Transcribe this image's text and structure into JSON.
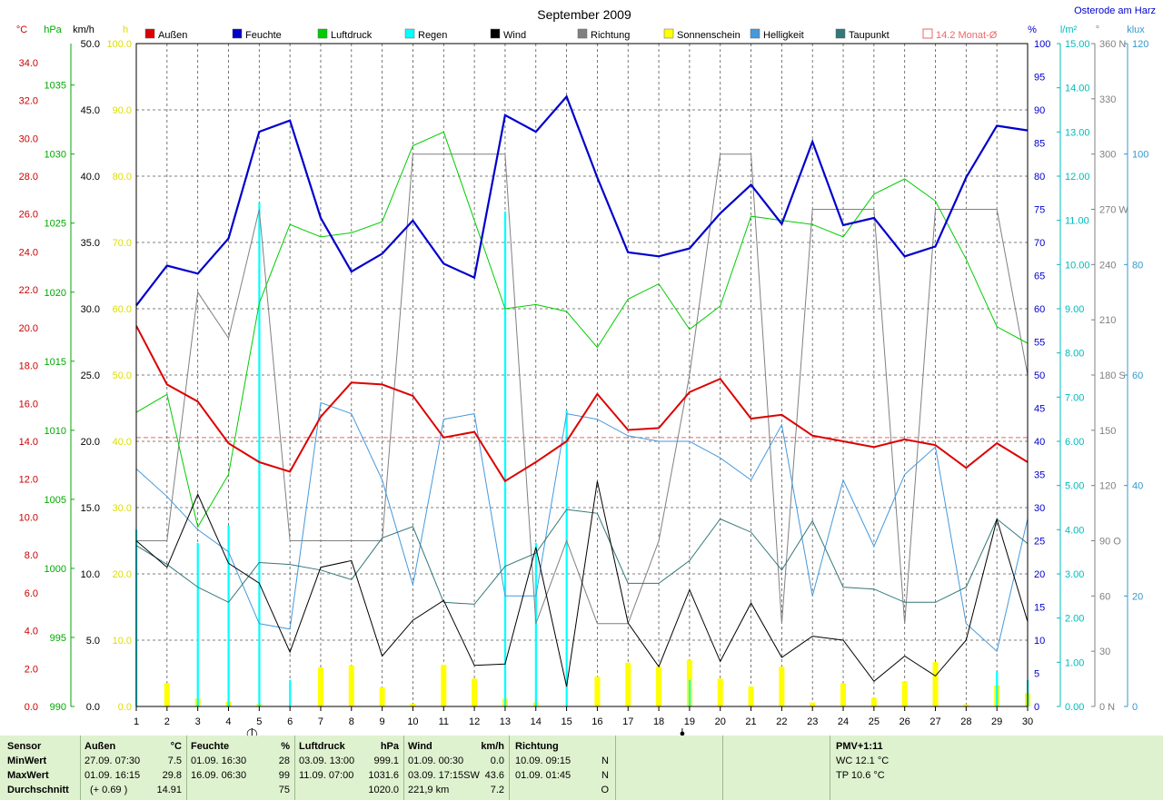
{
  "chart_data": {
    "type": "line",
    "title": "September 2009",
    "location": "Osterode am Harz",
    "days": [
      1,
      2,
      3,
      4,
      5,
      6,
      7,
      8,
      9,
      10,
      11,
      12,
      13,
      14,
      15,
      16,
      17,
      18,
      19,
      20,
      21,
      22,
      23,
      24,
      25,
      26,
      27,
      28,
      29,
      30
    ],
    "legend": [
      {
        "key": "aussen",
        "label": "Außen",
        "color": "#dd0000"
      },
      {
        "key": "feuchte",
        "label": "Feuchte",
        "color": "#0000cc"
      },
      {
        "key": "luftdruck",
        "label": "Luftdruck",
        "color": "#00cc00"
      },
      {
        "key": "regen",
        "label": "Regen",
        "color": "#00ffff"
      },
      {
        "key": "wind",
        "label": "Wind",
        "color": "#000000"
      },
      {
        "key": "richtung",
        "label": "Richtung",
        "color": "#808080"
      },
      {
        "key": "sonnenschein",
        "label": "Sonnenschein",
        "color": "#ffff00"
      },
      {
        "key": "helligkeit",
        "label": "Helligkeit",
        "color": "#4499dd"
      },
      {
        "key": "taupunkt",
        "label": "Taupunkt",
        "color": "#337777"
      },
      {
        "key": "monat",
        "label": "14.2 Monat-Ø",
        "color": "#ee6666"
      }
    ],
    "axes": {
      "temp": {
        "label": "°C",
        "color": "#cc0000",
        "ticks": [
          "0.0",
          "2.0",
          "4.0",
          "6.0",
          "8.0",
          "10.0",
          "12.0",
          "14.0",
          "16.0",
          "18.0",
          "20.0",
          "22.0",
          "24.0",
          "26.0",
          "28.0",
          "30.0",
          "32.0",
          "34.0"
        ]
      },
      "hpa": {
        "label": "hPa",
        "color": "#00aa00",
        "ticks": [
          "990",
          "995",
          "1000",
          "1005",
          "1010",
          "1015",
          "1020",
          "1025",
          "1030",
          "1035"
        ]
      },
      "kmh": {
        "label": "km/h",
        "color": "#000000",
        "ticks": [
          "0.0",
          "5.0",
          "10.0",
          "15.0",
          "20.0",
          "25.0",
          "30.0",
          "35.0",
          "40.0",
          "45.0",
          "50.0"
        ]
      },
      "sun": {
        "label": "h",
        "color": "#dddd00",
        "ticks": [
          "0.0",
          "10.0",
          "20.0",
          "30.0",
          "40.0",
          "50.0",
          "60.0",
          "70.0",
          "80.0",
          "90.0",
          "100.0"
        ]
      },
      "pct": {
        "label": "%",
        "color": "#0000cc",
        "ticks": [
          "0",
          "5",
          "10",
          "15",
          "20",
          "25",
          "30",
          "35",
          "40",
          "45",
          "50",
          "55",
          "60",
          "65",
          "70",
          "75",
          "80",
          "85",
          "90",
          "95",
          "100"
        ]
      },
      "rain": {
        "label": "l/m²",
        "color": "#00bbbb",
        "ticks": [
          "0.00",
          "1.00",
          "2.00",
          "3.00",
          "4.00",
          "5.00",
          "6.00",
          "7.00",
          "8.00",
          "9.00",
          "10.00",
          "11.00",
          "12.00",
          "13.00",
          "14.00",
          "15.00"
        ]
      },
      "dir": {
        "label": "°",
        "color": "#808080",
        "ticks": [
          "0 N",
          "30",
          "60",
          "90 O",
          "120",
          "150",
          "180 S",
          "210",
          "240",
          "270 W",
          "300",
          "330",
          "360 N"
        ]
      },
      "klux": {
        "label": "klux",
        "color": "#3399cc",
        "ticks": [
          "0",
          "20",
          "40",
          "60",
          "80",
          "100",
          "120"
        ]
      }
    },
    "series": {
      "aussen": [
        20.1,
        17.0,
        16.1,
        13.9,
        12.9,
        12.4,
        15.3,
        17.1,
        17.0,
        16.4,
        14.2,
        14.5,
        11.9,
        12.9,
        14.0,
        16.5,
        14.6,
        14.7,
        16.6,
        17.3,
        15.2,
        15.4,
        14.3,
        14.0,
        13.7,
        14.1,
        13.8,
        12.6,
        13.9,
        12.9
      ],
      "feuchte": [
        60.5,
        66.5,
        65.3,
        70.6,
        86.7,
        88.4,
        73.7,
        65.6,
        68.3,
        73.3,
        66.8,
        64.7,
        89.2,
        86.7,
        92.0,
        79.8,
        68.5,
        67.9,
        69.1,
        74.4,
        78.7,
        72.8,
        85.2,
        72.6,
        73.7,
        67.9,
        69.4,
        79.8,
        87.6,
        86.9
      ],
      "luftdruck": [
        1011.3,
        1012.6,
        1003.0,
        1006.8,
        1019.2,
        1024.9,
        1024.0,
        1024.3,
        1025.1,
        1030.6,
        1031.6,
        1025.2,
        1018.8,
        1019.1,
        1018.6,
        1016.0,
        1019.5,
        1020.6,
        1017.3,
        1019.0,
        1025.5,
        1025.2,
        1024.9,
        1024.0,
        1027.1,
        1028.2,
        1026.6,
        1022.4,
        1017.5,
        1016.3
      ],
      "regen": [
        4.0,
        0,
        3.7,
        4.1,
        11.4,
        0.6,
        0,
        0,
        0,
        0,
        0,
        0,
        11.2,
        3.7,
        6.7,
        0,
        0,
        0,
        0.6,
        0,
        0,
        0,
        0,
        0,
        0,
        0,
        0,
        0,
        0.8,
        0.6
      ],
      "wind": [
        12.5,
        10.5,
        16.0,
        10.8,
        9.3,
        4.1,
        10.5,
        11.0,
        3.8,
        6.5,
        8.0,
        3.1,
        3.2,
        12.0,
        1.5,
        17.0,
        6.3,
        3.0,
        8.8,
        3.4,
        7.8,
        3.7,
        5.3,
        5.0,
        1.9,
        3.8,
        2.3,
        5.0,
        14.1,
        6.4
      ],
      "richtung": [
        90,
        90,
        225,
        200,
        270,
        90,
        90,
        90,
        90,
        300,
        300,
        300,
        300,
        45,
        90,
        45,
        45,
        90,
        180,
        300,
        300,
        45,
        270,
        270,
        270,
        45,
        270,
        270,
        270,
        180
      ],
      "sonnenschein": [
        0,
        3.5,
        1.2,
        0.7,
        0.4,
        0,
        5.9,
        6.2,
        2.9,
        0.4,
        6.3,
        4.2,
        1.2,
        0.6,
        0,
        4.5,
        6.6,
        6.0,
        7.0,
        4.2,
        3.0,
        6.0,
        0.6,
        3.5,
        1.3,
        3.8,
        6.7,
        0.3,
        3.2,
        2.0
      ],
      "helligkeit": [
        43,
        38,
        32,
        28,
        15,
        14,
        55,
        53,
        41,
        22,
        52,
        53,
        20,
        20,
        53,
        52,
        49,
        48,
        48,
        45,
        41,
        51,
        20,
        41,
        29,
        42,
        47,
        15,
        10,
        34
      ],
      "taupunkt": [
        8.5,
        7.5,
        6.3,
        5.5,
        7.6,
        7.5,
        7.2,
        6.7,
        8.9,
        9.5,
        5.5,
        5.4,
        7.4,
        8.1,
        10.4,
        10.2,
        6.5,
        6.5,
        7.7,
        9.9,
        9.2,
        7.2,
        9.8,
        6.3,
        6.2,
        5.5,
        5.5,
        6.3,
        9.9,
        8.6
      ]
    },
    "monthly_mean_temp": 14.2,
    "moon_markers": [
      {
        "day": 5,
        "symbol": "◯"
      },
      {
        "day": 19,
        "symbol": "●"
      }
    ]
  },
  "stats": {
    "row_labels": [
      "Sensor",
      "MinWert",
      "MaxWert",
      "Durchschnitt"
    ],
    "aussen": {
      "head": "Außen",
      "unit": "°C",
      "min_time": "27.09.  07:30",
      "min_val": "7.5",
      "max_time": "01.09.  16:15",
      "max_val": "29.8",
      "avg_extra": "(+ 0.69 )",
      "avg_val": "14.91"
    },
    "feuchte": {
      "head": "Feuchte",
      "unit": "%",
      "min_time": "01.09.  16:30",
      "min_val": "28",
      "max_time": "16.09.  06:30",
      "max_val": "99",
      "avg_val": "75"
    },
    "luftdruck": {
      "head": "Luftdruck",
      "unit": "hPa",
      "min_time": "03.09.  13:00",
      "min_val": "999.1",
      "max_time": "11.09.  07:00",
      "max_val": "1031.6",
      "avg_val": "1020.0"
    },
    "wind": {
      "head": "Wind",
      "unit": "km/h",
      "min_time": "01.09.  00:30",
      "min_val": "0.0",
      "max_time": "03.09.  17:15SW",
      "max_val": "43.6",
      "avg_extra": "221,9 km",
      "avg_val": "7.2"
    },
    "richtung": {
      "head": "Richtung",
      "min_time": "10.09.  09:15",
      "min_val": "N",
      "max_time": "01.09.  01:45",
      "max_val": "N",
      "avg_val": "O"
    },
    "pmv": {
      "head": "PMV+1:11",
      "wc": "WC 12.1 °C",
      "tp": "TP 10.6 °C"
    }
  }
}
